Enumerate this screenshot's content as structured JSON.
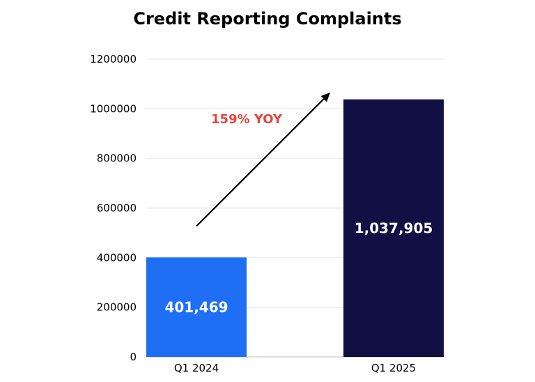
{
  "chart_data": {
    "type": "bar",
    "title": "Credit Reporting Complaints",
    "categories": [
      "Q1 2024",
      "Q1 2025"
    ],
    "values": [
      401469,
      1037905
    ],
    "value_labels": [
      "401,469",
      "1,037,905"
    ],
    "bar_colors": [
      "#1f6ff5",
      "#120f45"
    ],
    "ylim": [
      0,
      1200000
    ],
    "yticks": [
      0,
      200000,
      400000,
      600000,
      800000,
      1000000,
      1200000
    ],
    "ytick_labels": [
      "0",
      "200000",
      "400000",
      "600000",
      "800000",
      "1000000",
      "1200000"
    ],
    "grid": true,
    "xlabel": "",
    "ylabel": "",
    "annotation": {
      "text": "159% YOY",
      "color": "#e8453c",
      "arrow": "upward from Q1 2024 toward Q1 2025"
    }
  }
}
